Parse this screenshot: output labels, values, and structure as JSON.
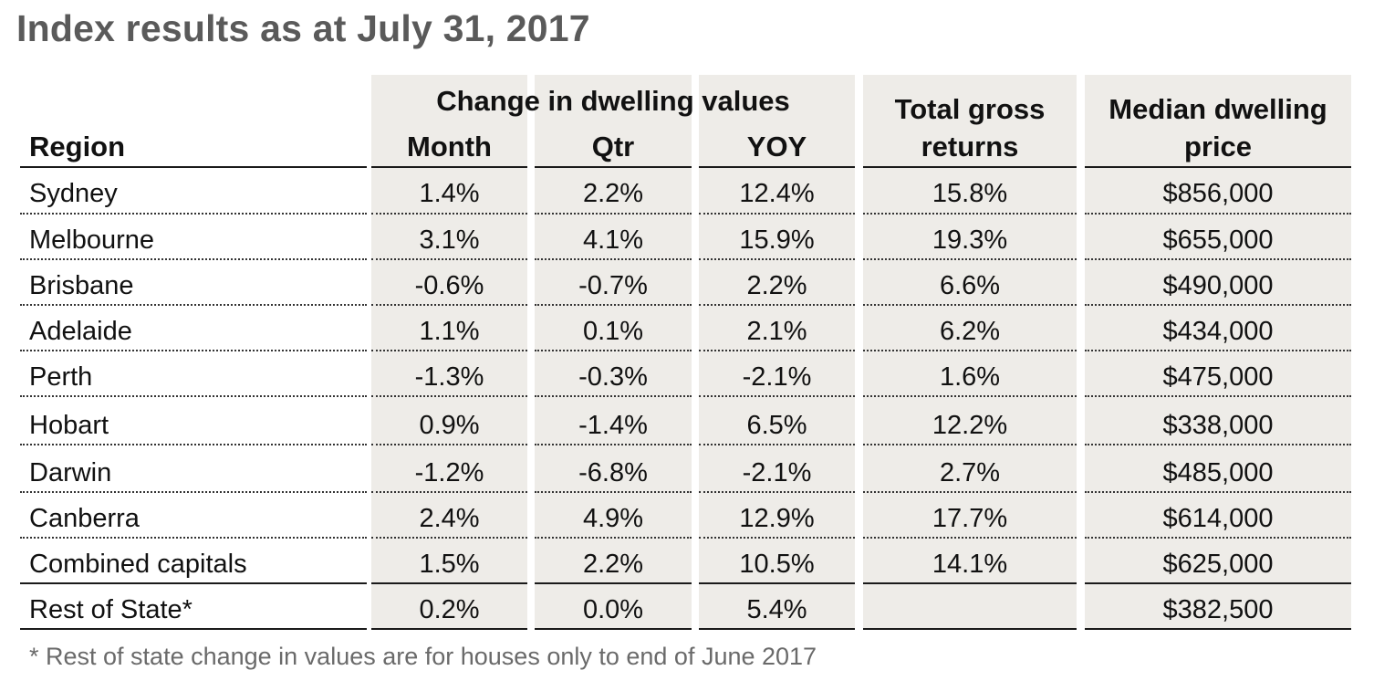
{
  "chart_data": {
    "type": "table",
    "title": "Index results as at July 31, 2017",
    "group_header": "Change in dwelling values",
    "columns": {
      "region": "Region",
      "month": "Month",
      "qtr": "Qtr",
      "yoy": "YOY",
      "returns_line1": "Total gross",
      "returns_line2": "returns",
      "median_line1": "Median dwelling",
      "median_line2": "price"
    },
    "rows": [
      {
        "region": "Sydney",
        "month": "1.4%",
        "qtr": "2.2%",
        "yoy": "12.4%",
        "returns": "15.8%",
        "median": "$856,000"
      },
      {
        "region": "Melbourne",
        "month": "3.1%",
        "qtr": "4.1%",
        "yoy": "15.9%",
        "returns": "19.3%",
        "median": "$655,000"
      },
      {
        "region": "Brisbane",
        "month": "-0.6%",
        "qtr": "-0.7%",
        "yoy": "2.2%",
        "returns": "6.6%",
        "median": "$490,000"
      },
      {
        "region": "Adelaide",
        "month": "1.1%",
        "qtr": "0.1%",
        "yoy": "2.1%",
        "returns": "6.2%",
        "median": "$434,000"
      },
      {
        "region": "Perth",
        "month": "-1.3%",
        "qtr": "-0.3%",
        "yoy": "-2.1%",
        "returns": "1.6%",
        "median": "$475,000"
      },
      {
        "region": "Hobart",
        "month": "0.9%",
        "qtr": "-1.4%",
        "yoy": "6.5%",
        "returns": "12.2%",
        "median": "$338,000"
      },
      {
        "region": "Darwin",
        "month": "-1.2%",
        "qtr": "-6.8%",
        "yoy": "-2.1%",
        "returns": "2.7%",
        "median": "$485,000"
      },
      {
        "region": "Canberra",
        "month": "2.4%",
        "qtr": "4.9%",
        "yoy": "12.9%",
        "returns": "17.7%",
        "median": "$614,000"
      },
      {
        "region": "Combined capitals",
        "month": "1.5%",
        "qtr": "2.2%",
        "yoy": "10.5%",
        "returns": "14.1%",
        "median": "$625,000"
      },
      {
        "region": "Rest of State*",
        "month": "0.2%",
        "qtr": "0.0%",
        "yoy": "5.4%",
        "returns": "",
        "median": "$382,500"
      }
    ],
    "footnote": "* Rest of state change in values are for houses only to end of June  2017"
  }
}
